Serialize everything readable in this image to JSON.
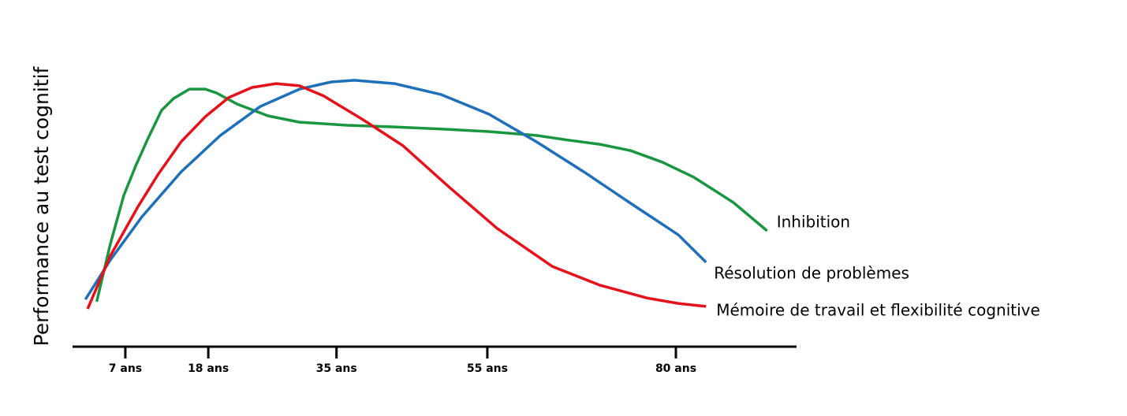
{
  "chart_data": {
    "type": "line",
    "y_label": "Performance au test cognitif",
    "xlim": [
      0,
      96
    ],
    "ylim": [
      0,
      100
    ],
    "xticks": [
      {
        "value": 7,
        "label": "7 ans"
      },
      {
        "value": 18,
        "label": "18 ans"
      },
      {
        "value": 35,
        "label": "35 ans"
      },
      {
        "value": 55,
        "label": "55 ans"
      },
      {
        "value": 80,
        "label": "80 ans"
      }
    ],
    "grid": false,
    "series": [
      {
        "name": "Inhibition",
        "color": "#1a9641",
        "x": [
          3.2,
          5.0,
          6.8,
          8.4,
          9.9,
          11.8,
          13.4,
          15.5,
          17.6,
          19.1,
          21.8,
          25.9,
          30.1,
          36.4,
          42.7,
          48.9,
          55.2,
          61.5,
          65.7,
          69.9,
          74.0,
          78.2,
          82.4,
          87.6,
          92.1
        ],
        "values": [
          16.3,
          37.1,
          54.9,
          65.7,
          74.9,
          85.7,
          90.0,
          93.4,
          93.4,
          92.0,
          88.0,
          83.7,
          81.4,
          80.3,
          79.7,
          78.9,
          78.0,
          76.6,
          74.9,
          73.4,
          71.1,
          66.9,
          61.4,
          52.3,
          42.0
        ]
      },
      {
        "name": "Résolution de problèmes",
        "color": "#1f70b8",
        "x": [
          1.7,
          5.0,
          9.2,
          14.4,
          19.6,
          24.9,
          30.1,
          34.3,
          37.4,
          42.7,
          48.9,
          55.2,
          61.5,
          67.8,
          74.0,
          80.3,
          84.0
        ],
        "values": [
          17.1,
          31.4,
          47.1,
          63.4,
          76.6,
          87.1,
          93.4,
          96.0,
          96.6,
          95.4,
          91.4,
          84.3,
          74.3,
          63.4,
          52.0,
          40.6,
          30.6
        ]
      },
      {
        "name": "Mémoire de travail et flexibilité cognitive",
        "color": "#e3121b",
        "x": [
          2.0,
          5.0,
          8.7,
          11.3,
          14.4,
          17.6,
          20.7,
          23.8,
          27.0,
          30.1,
          33.3,
          38.5,
          43.8,
          50.0,
          56.3,
          63.6,
          69.9,
          76.1,
          80.3,
          84.0
        ],
        "values": [
          13.7,
          32.9,
          50.9,
          62.3,
          74.3,
          83.4,
          90.3,
          94.0,
          95.4,
          94.6,
          90.9,
          82.3,
          72.9,
          57.7,
          42.9,
          29.1,
          22.3,
          17.7,
          15.7,
          14.6
        ]
      }
    ]
  }
}
